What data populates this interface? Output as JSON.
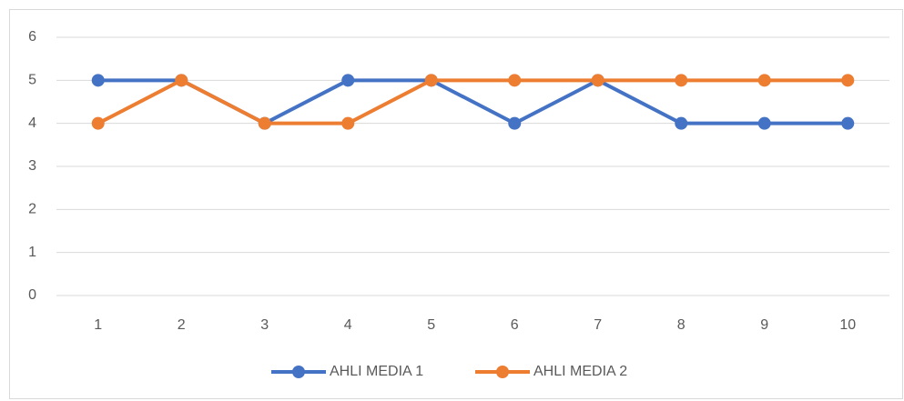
{
  "chart_data": {
    "type": "line",
    "categories": [
      "1",
      "2",
      "3",
      "4",
      "5",
      "6",
      "7",
      "8",
      "9",
      "10"
    ],
    "series": [
      {
        "name": "AHLI MEDIA 1",
        "color": "#4472c4",
        "values": [
          5,
          5,
          4,
          5,
          5,
          4,
          5,
          4,
          4,
          4
        ]
      },
      {
        "name": "AHLI MEDIA 2",
        "color": "#ed7d31",
        "values": [
          4,
          5,
          4,
          4,
          5,
          5,
          5,
          5,
          5,
          5
        ]
      }
    ],
    "ylim": [
      0,
      6
    ],
    "yticks": [
      0,
      1,
      2,
      3,
      4,
      5,
      6
    ],
    "grid": true,
    "legend": "bottom"
  }
}
